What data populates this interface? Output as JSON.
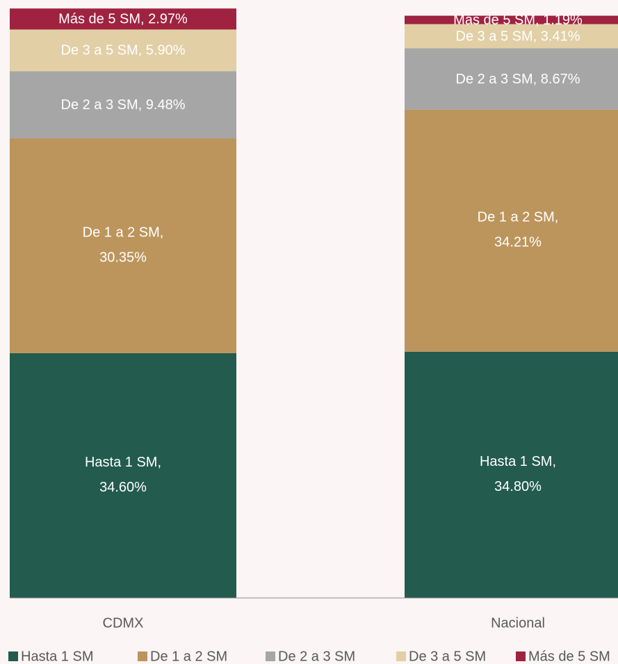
{
  "chart_data": {
    "type": "stacked_bar",
    "categories": [
      "CDMX",
      "Nacional"
    ],
    "series": [
      {
        "name": "Hasta 1 SM",
        "color": "#235b4e",
        "values": [
          34.6,
          34.8
        ],
        "value_labels": [
          "Hasta 1 SM, 34.60%",
          "Hasta 1 SM, 34.80%"
        ]
      },
      {
        "name": "De 1 a 2 SM",
        "color": "#bc955c",
        "values": [
          30.35,
          34.21
        ],
        "value_labels": [
          "De 1 a 2 SM, 30.35%",
          "De 1 a 2 SM, 34.21%"
        ]
      },
      {
        "name": "De 2 a 3 SM",
        "color": "#a6a6a6",
        "values": [
          9.48,
          8.67
        ],
        "value_labels": [
          "De 2 a 3 SM, 9.48%",
          "De 2 a 3 SM, 8.67%"
        ]
      },
      {
        "name": "De 3 a 5 SM",
        "color": "#e2cfa6",
        "values": [
          5.9,
          3.41
        ],
        "value_labels": [
          "De 3 a 5 SM, 5.90%",
          "De 3 a 5 SM, 3.41%"
        ]
      },
      {
        "name": "Más de 5 SM",
        "color": "#9f2241",
        "values": [
          2.97,
          1.19
        ],
        "value_labels": [
          "Más de 5 SM, 2.97%",
          "Más de 5 SM, 1.19%"
        ]
      }
    ],
    "ylim": [
      0,
      84.5
    ],
    "legend": "bottom"
  }
}
